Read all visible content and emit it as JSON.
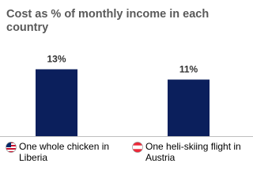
{
  "chart_data": {
    "type": "bar",
    "title": "Cost as % of monthly income in each country",
    "categories": [
      "One whole chicken in Liberia",
      "One heli-skiing flight in Austria"
    ],
    "values": [
      13,
      11
    ],
    "value_labels": [
      "13%",
      "11%"
    ],
    "color": "#0b1f5c"
  }
}
